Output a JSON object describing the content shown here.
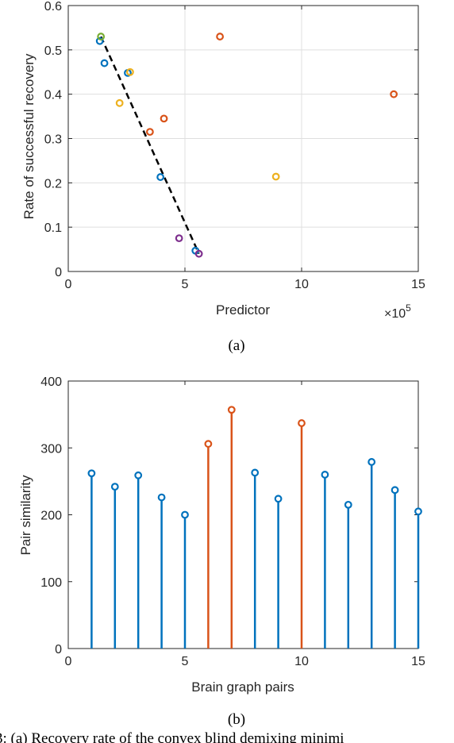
{
  "chart_data": [
    {
      "type": "scatter",
      "panel_label": "(a)",
      "xlabel": "Predictor",
      "ylabel": "Rate of successful recovery",
      "x_multiplier_label": "×10",
      "x_multiplier_exp": "5",
      "xlim": [
        0,
        15
      ],
      "ylim": [
        0,
        0.6
      ],
      "xticks": [
        0,
        5,
        10,
        15
      ],
      "yticks": [
        0,
        0.1,
        0.2,
        0.3,
        0.4,
        0.5,
        0.6
      ],
      "grid": true,
      "series": [
        {
          "color": "#0072BD",
          "points": [
            [
              1.35,
              0.52
            ],
            [
              1.55,
              0.47
            ],
            [
              2.55,
              0.448
            ],
            [
              3.95,
              0.213
            ],
            [
              5.45,
              0.047
            ]
          ]
        },
        {
          "color": "#D95319",
          "points": [
            [
              6.5,
              0.53
            ],
            [
              13.95,
              0.4
            ],
            [
              4.1,
              0.345
            ],
            [
              3.5,
              0.315
            ]
          ]
        },
        {
          "color": "#EDB120",
          "points": [
            [
              2.65,
              0.45
            ],
            [
              2.2,
              0.38
            ],
            [
              8.9,
              0.214
            ]
          ]
        },
        {
          "color": "#7E2F8E",
          "points": [
            [
              4.75,
              0.075
            ],
            [
              5.6,
              0.04
            ]
          ]
        },
        {
          "color": "#77AC30",
          "points": [
            [
              1.4,
              0.53
            ]
          ]
        }
      ],
      "fit_line": {
        "color": "#000000",
        "style": "dashed",
        "points": [
          [
            1.4,
            0.53
          ],
          [
            5.6,
            0.04
          ]
        ]
      }
    },
    {
      "type": "stem",
      "panel_label": "(b)",
      "xlabel": "Brain graph pairs",
      "ylabel": "Pair similarity",
      "xlim": [
        0,
        15
      ],
      "ylim": [
        0,
        400
      ],
      "xticks": [
        0,
        5,
        10,
        15
      ],
      "yticks": [
        0,
        100,
        200,
        300,
        400
      ],
      "grid": false,
      "x": [
        1,
        2,
        3,
        4,
        5,
        6,
        7,
        8,
        9,
        10,
        11,
        12,
        13,
        14,
        15
      ],
      "values": [
        262,
        242,
        259,
        226,
        200,
        306,
        357,
        263,
        224,
        337,
        260,
        215,
        279,
        237,
        205
      ],
      "colors": [
        "#0072BD",
        "#0072BD",
        "#0072BD",
        "#0072BD",
        "#0072BD",
        "#D95319",
        "#D95319",
        "#0072BD",
        "#0072BD",
        "#D95319",
        "#0072BD",
        "#0072BD",
        "#0072BD",
        "#0072BD",
        "#0072BD"
      ]
    }
  ],
  "caption": "3: (a) Recovery rate of the convex blind demixing minimi"
}
